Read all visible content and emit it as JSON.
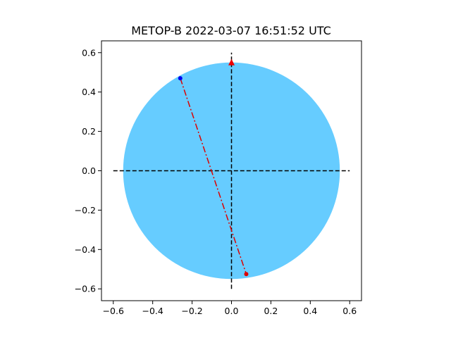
{
  "chart_data": {
    "type": "scatter",
    "title": "METOP-B   2022-03-07   16:51:52 UTC",
    "xlabel": "",
    "ylabel": "",
    "xlim": [
      -0.66,
      0.66
    ],
    "ylim": [
      -0.66,
      0.66
    ],
    "xticks": [
      -0.6,
      -0.4,
      -0.2,
      0.0,
      0.2,
      0.4,
      0.6
    ],
    "yticks": [
      -0.6,
      -0.4,
      -0.2,
      0.0,
      0.2,
      0.4,
      0.6
    ],
    "xtick_labels": [
      "−0.6",
      "−0.4",
      "−0.2",
      "0.0",
      "0.2",
      "0.4",
      "0.6"
    ],
    "ytick_labels": [
      "−0.6",
      "−0.4",
      "−0.2",
      "0.0",
      "0.2",
      "0.4",
      "0.6"
    ],
    "grid": false,
    "disk": {
      "center": [
        0,
        0
      ],
      "radius": 0.55,
      "color": "#66ccff"
    },
    "crosshair": {
      "color": "#000000",
      "style": "dashed",
      "h_x": [
        -0.6,
        0.6
      ],
      "v_y": [
        -0.6,
        0.6
      ]
    },
    "track": {
      "color": "#dd0000",
      "style": "dash-dot",
      "start": [
        -0.26,
        0.47
      ],
      "end": [
        0.075,
        -0.525
      ],
      "start_color": "#0000ee",
      "end_color": "#dd0000"
    },
    "north_marker": {
      "x": 0.0,
      "y": 0.55,
      "color": "#ee0000",
      "shape": "triangle"
    }
  }
}
